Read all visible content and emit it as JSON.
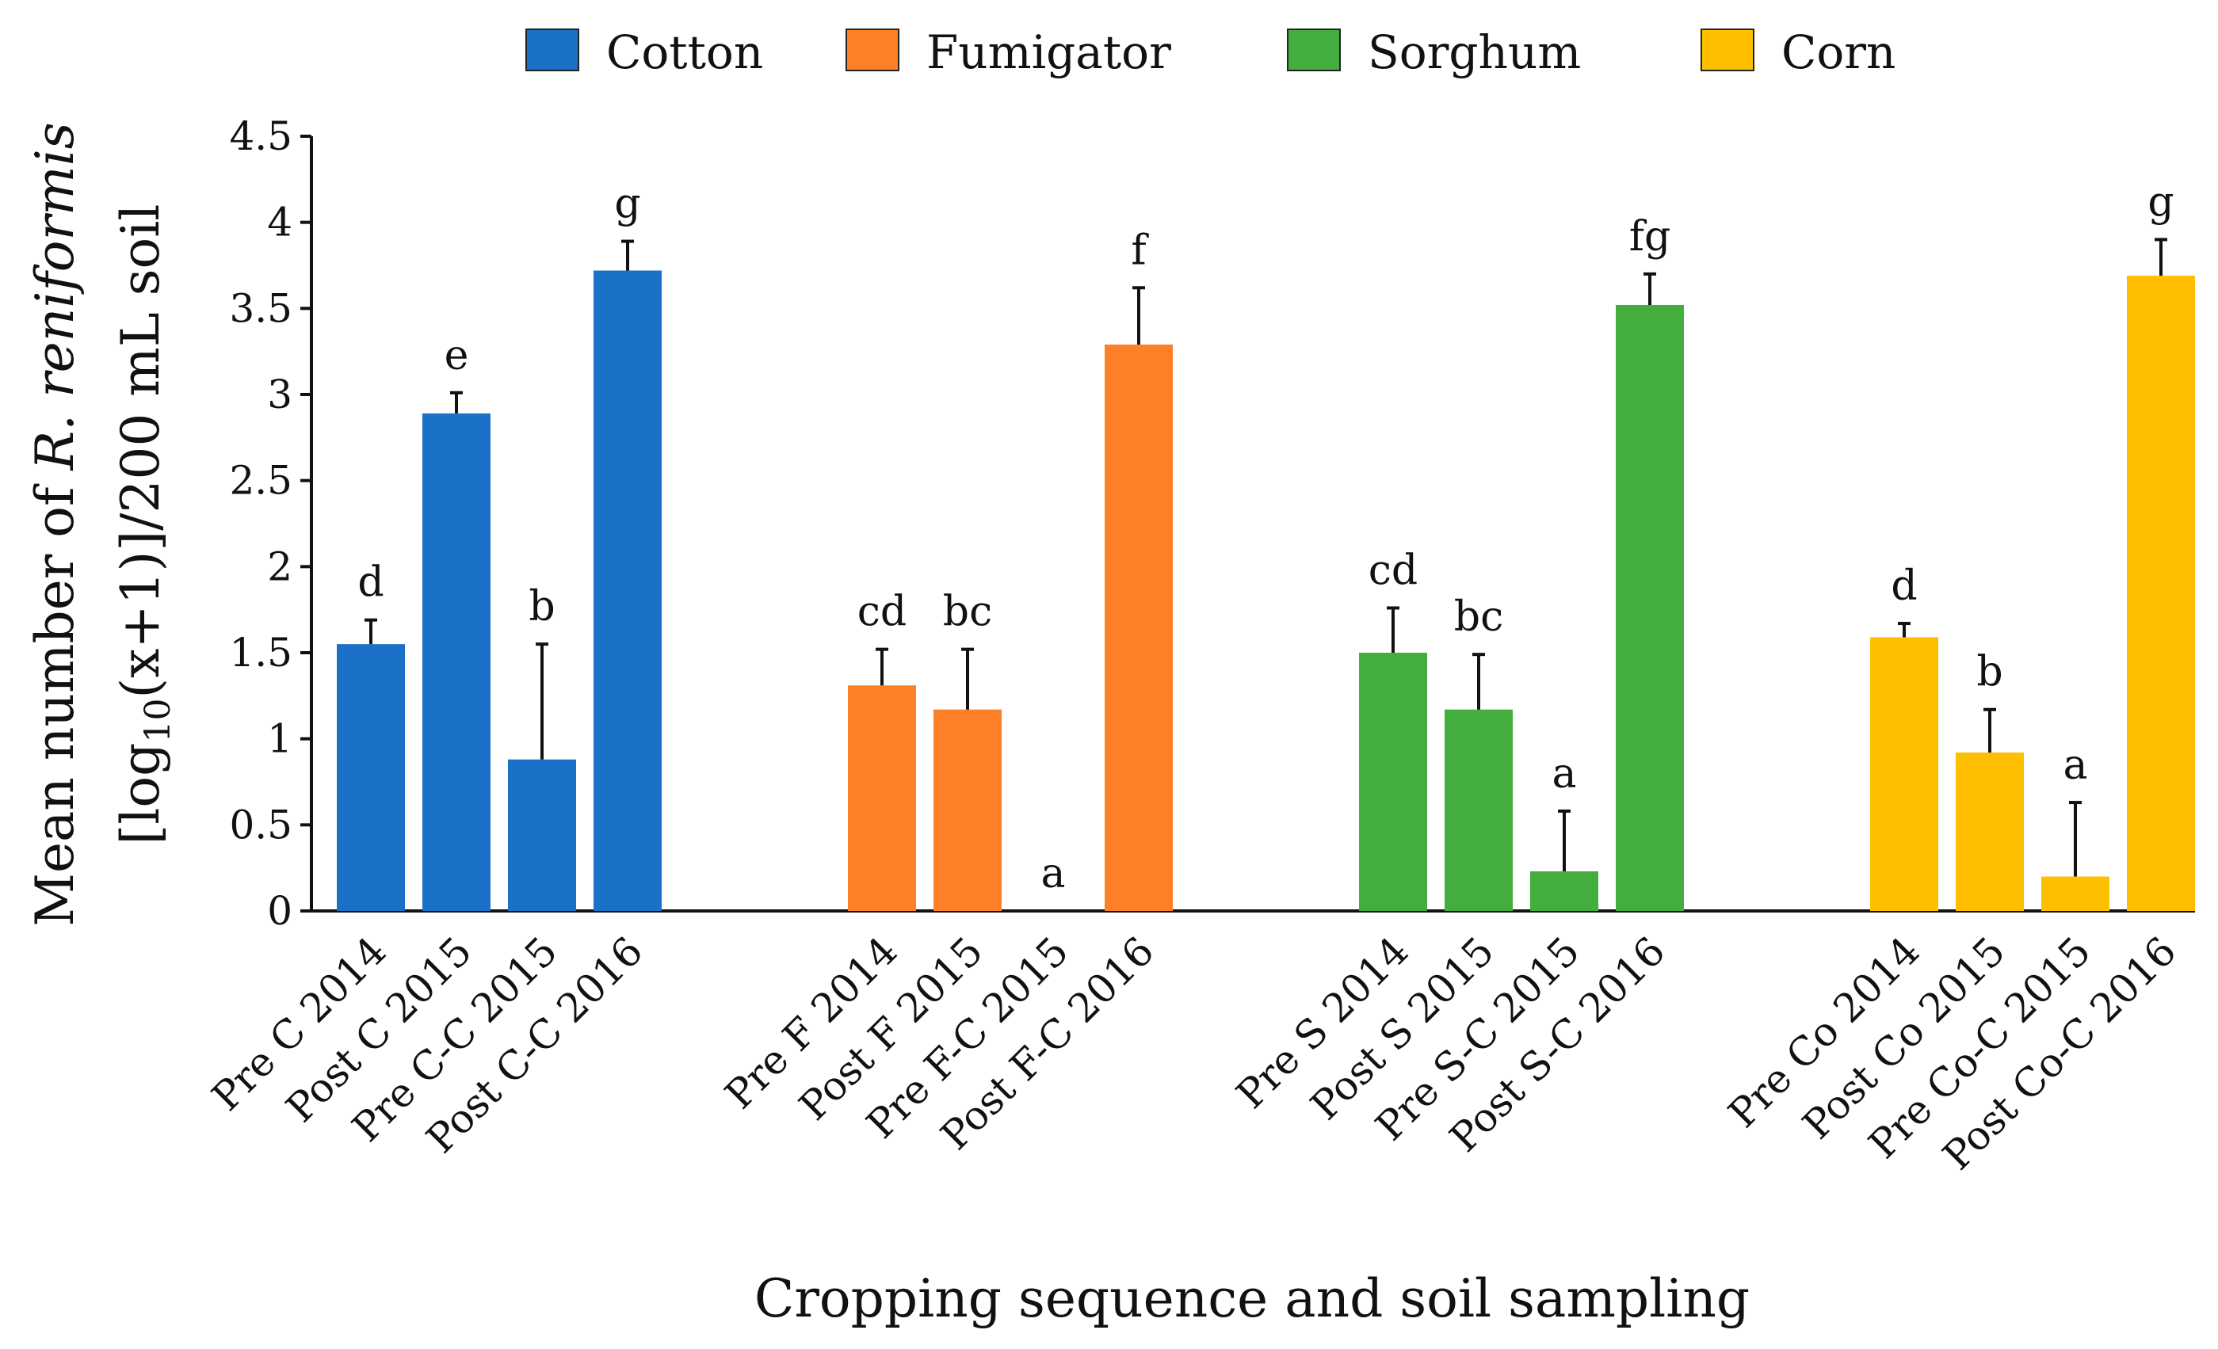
{
  "chart_data": {
    "type": "bar",
    "title": "",
    "xlabel": "Cropping sequence and soil sampling",
    "ylabel": {
      "line1_prefix": "Mean number of ",
      "line1_italic": "R. reniformis",
      "line2_prefix": "[log",
      "line2_sub": "10",
      "line2_suffix": "(x+1)]/200 mL soil"
    },
    "ylim": [
      0,
      4.5
    ],
    "yticks": [
      "0",
      "0.5",
      "1",
      "1.5",
      "2",
      "2.5",
      "3",
      "3.5",
      "4",
      "4.5"
    ],
    "grid": false,
    "legend_position": "top",
    "series": [
      {
        "name": "Cotton",
        "color": "#1b70c8",
        "categories": [
          "Pre C 2014",
          "Post C 2015",
          "Pre C-C 2015",
          "Post C-C 2016"
        ],
        "values": [
          1.55,
          2.89,
          0.88,
          3.72
        ],
        "errors": [
          0.14,
          0.12,
          0.67,
          0.17
        ],
        "letters": [
          "d",
          "e",
          "b",
          "g"
        ]
      },
      {
        "name": "Fumigator",
        "color": "#fd7f28",
        "categories": [
          "Pre F 2014",
          "Post F 2015",
          "Pre F-C 2015",
          "Post F-C 2016"
        ],
        "values": [
          1.31,
          1.17,
          0.0,
          3.29
        ],
        "errors": [
          0.21,
          0.35,
          0.0,
          0.33
        ],
        "letters": [
          "cd",
          "bc",
          "a",
          "f"
        ]
      },
      {
        "name": "Sorghum",
        "color": "#43ae3e",
        "categories": [
          "Pre S 2014",
          "Post S 2015",
          "Pre S-C 2015",
          "Post S-C 2016"
        ],
        "values": [
          1.5,
          1.17,
          0.23,
          3.52
        ],
        "errors": [
          0.26,
          0.32,
          0.35,
          0.18
        ],
        "letters": [
          "cd",
          "bc",
          "a",
          "fg"
        ]
      },
      {
        "name": "Corn",
        "color": "#fdbf00",
        "categories": [
          "Pre Co 2014",
          "Post Co 2015",
          "Pre Co-C 2015",
          "Post Co-C 2016"
        ],
        "values": [
          1.59,
          0.92,
          0.2,
          3.69
        ],
        "errors": [
          0.08,
          0.25,
          0.43,
          0.21
        ],
        "letters": [
          "d",
          "b",
          "a",
          "g"
        ]
      }
    ]
  }
}
